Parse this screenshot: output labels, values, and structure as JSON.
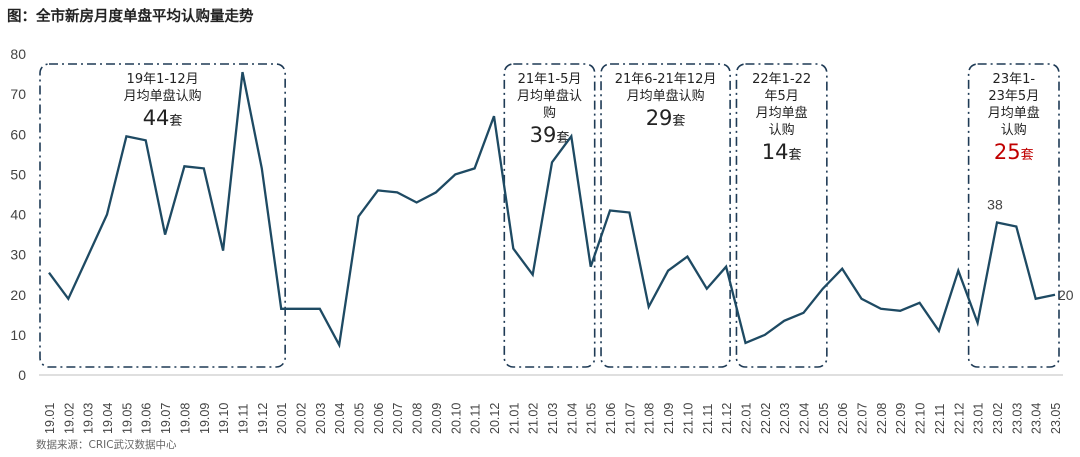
{
  "header": {
    "title": "图：全市新房月度单盘平均认购量走势"
  },
  "footer": {
    "source": "数据来源：CRIC武汉数据中心"
  },
  "colors": {
    "line": "#1e4a63",
    "box": "#1e3a55",
    "highlight": "#c00000"
  },
  "chart_data": {
    "type": "line",
    "ylim": [
      0,
      80
    ],
    "yticks": [
      0,
      10,
      20,
      30,
      40,
      50,
      60,
      70,
      80
    ],
    "categories": [
      "19.01",
      "19.02",
      "19.03",
      "19.04",
      "19.05",
      "19.06",
      "19.07",
      "19.08",
      "19.09",
      "19.10",
      "19.11",
      "19.12",
      "20.01",
      "20.02",
      "20.03",
      "20.04",
      "20.05",
      "20.06",
      "20.07",
      "20.08",
      "20.09",
      "20.10",
      "20.11",
      "20.12",
      "21.01",
      "21.02",
      "21.03",
      "21.04",
      "21.05",
      "21.06",
      "21.07",
      "21.08",
      "21.09",
      "21.10",
      "21.11",
      "21.12",
      "22.01",
      "22.02",
      "22.03",
      "22.04",
      "22.05",
      "22.06",
      "22.07",
      "22.08",
      "22.09",
      "22.10",
      "22.11",
      "22.12",
      "23.01",
      "23.02",
      "23.03",
      "23.04",
      "23.05"
    ],
    "values": [
      25.5,
      19,
      29.5,
      40,
      59.5,
      58.5,
      35,
      52,
      51.5,
      31,
      75.5,
      51.5,
      16.5,
      16.5,
      16.5,
      7.5,
      39.5,
      46,
      45.5,
      43,
      45.5,
      50,
      51.5,
      64.5,
      31.5,
      25,
      53,
      59.5,
      27,
      41,
      40.5,
      17,
      26,
      29.5,
      21.5,
      27,
      8,
      10,
      13.5,
      15.5,
      21.5,
      26.5,
      19,
      16.5,
      16,
      18,
      11,
      26,
      13,
      38,
      37,
      19,
      20
    ],
    "point_labels": [
      {
        "index": 49,
        "text": "38"
      },
      {
        "index": 52,
        "text": "20"
      }
    ],
    "annotations": [
      {
        "from": 0,
        "to": 12,
        "lines": [
          "19年1-12月",
          "月均单盘认购"
        ],
        "value": "44",
        "unit": "套",
        "highlight": false
      },
      {
        "from": 24,
        "to": 28,
        "lines": [
          "21年1-5月",
          "月均单盘认",
          "购"
        ],
        "value": "39",
        "unit": "套",
        "highlight": false
      },
      {
        "from": 29,
        "to": 35,
        "lines": [
          "21年6-21年12月",
          "月均单盘认购"
        ],
        "value": "29",
        "unit": "套",
        "highlight": false
      },
      {
        "from": 36,
        "to": 40,
        "lines": [
          "22年1-22",
          "年5月",
          "月均单盘",
          "认购"
        ],
        "value": "14",
        "unit": "套",
        "highlight": false
      },
      {
        "from": 48,
        "to": 52,
        "lines": [
          "23年1-",
          "23年5月",
          "月均单盘",
          "认购"
        ],
        "value": "25",
        "unit": "套",
        "highlight": true
      }
    ]
  }
}
